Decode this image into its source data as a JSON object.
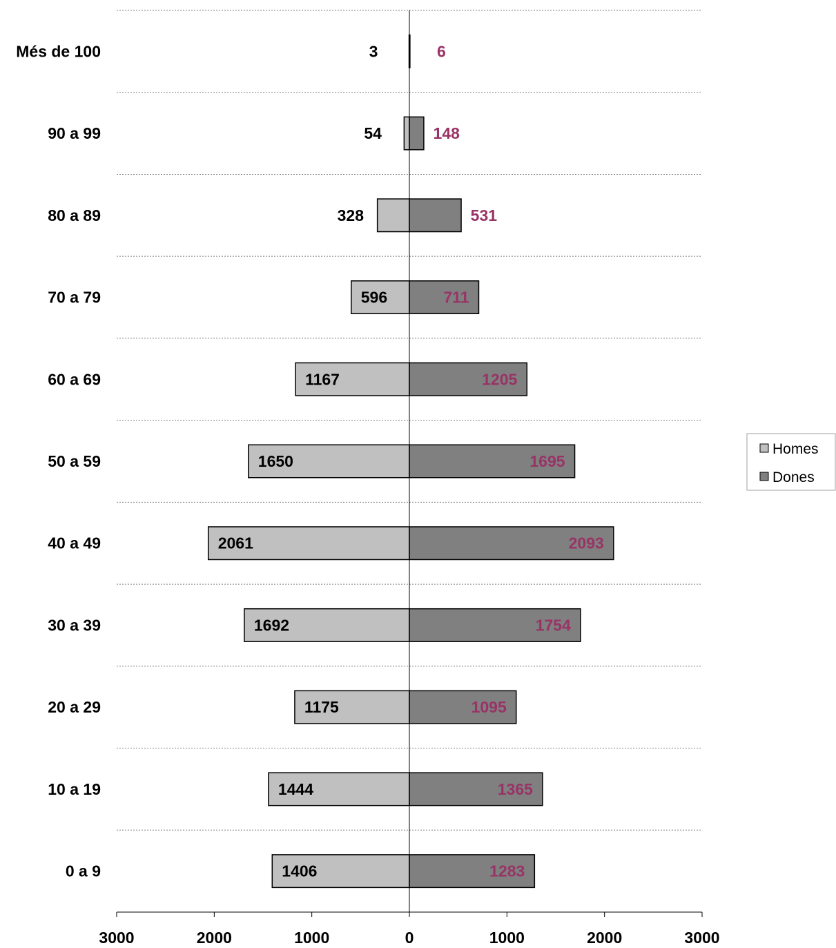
{
  "chart_data": {
    "type": "bar",
    "orientation": "horizontal",
    "layout": "population-pyramid",
    "categories": [
      "Més de 100",
      "90 a 99",
      "80 a 89",
      "70 a 79",
      "60 a 69",
      "50 a 59",
      "40 a 49",
      "30 a 39",
      "20 a 29",
      "10 a 19",
      "0 a 9"
    ],
    "series": [
      {
        "name": "Homes",
        "values": [
          3,
          54,
          328,
          596,
          1167,
          1650,
          2061,
          1692,
          1175,
          1444,
          1406
        ],
        "color": "#c0c0c0",
        "label_color": "#000000",
        "side": "left"
      },
      {
        "name": "Dones",
        "values": [
          6,
          148,
          531,
          711,
          1205,
          1695,
          2093,
          1754,
          1095,
          1365,
          1283
        ],
        "color": "#808080",
        "label_color": "#993366",
        "side": "right"
      }
    ],
    "xlim": [
      -3000,
      3000
    ],
    "x_ticks": [
      "3000",
      "2000",
      "1000",
      "0",
      "1000",
      "2000",
      "3000"
    ],
    "title": "",
    "xlabel": "",
    "ylabel": "",
    "grid": true,
    "legend_position": "right"
  }
}
